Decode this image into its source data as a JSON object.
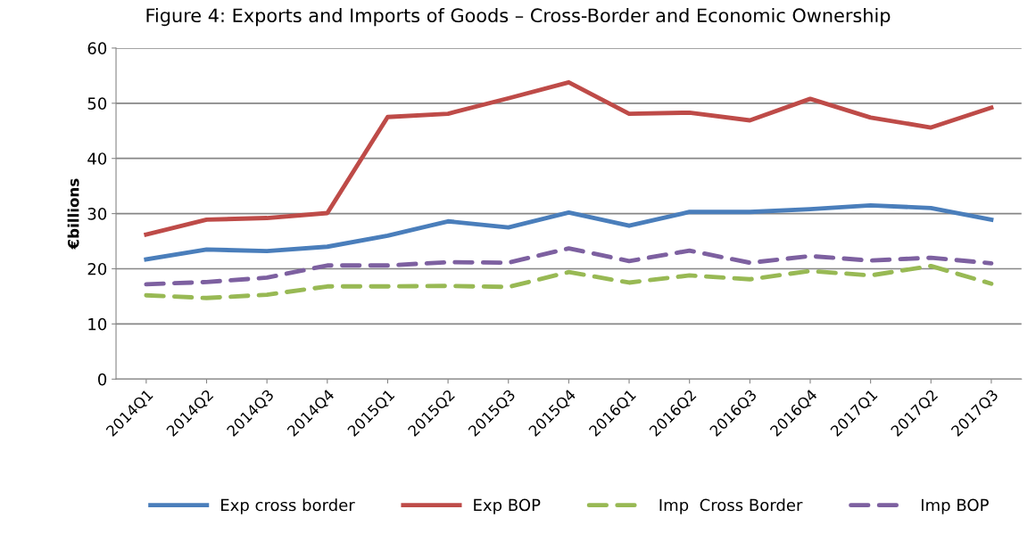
{
  "chart_data": {
    "type": "line",
    "title": "Figure 4: Exports and Imports of Goods – Cross-Border and Economic Ownership",
    "ylabel": "€billions",
    "categories": [
      "2014Q1",
      "2014Q2",
      "2014Q3",
      "2014Q4",
      "2015Q1",
      "2015Q2",
      "2015Q3",
      "2015Q4",
      "2016Q1",
      "2016Q2",
      "2016Q3",
      "2016Q4",
      "2017Q1",
      "2017Q2",
      "2017Q3"
    ],
    "series": [
      {
        "name": "Exp cross border",
        "color": "#4a7ebb",
        "line_style": "solid",
        "values": [
          21.7,
          23.5,
          23.2,
          24.0,
          26.0,
          28.6,
          27.5,
          30.2,
          27.8,
          30.3,
          30.3,
          30.8,
          31.5,
          31.0,
          28.9
        ]
      },
      {
        "name": "Exp BOP",
        "color": "#be4b48",
        "line_style": "solid",
        "values": [
          26.2,
          28.9,
          29.2,
          30.1,
          47.5,
          48.1,
          50.9,
          53.8,
          48.1,
          48.3,
          46.9,
          50.8,
          47.4,
          45.6,
          49.2
        ]
      },
      {
        "name": "Imp  Cross Border",
        "color": "#98b954",
        "line_style": "dashed",
        "values": [
          15.2,
          14.7,
          15.3,
          16.8,
          16.8,
          16.9,
          16.7,
          19.4,
          17.5,
          18.8,
          18.1,
          19.6,
          18.8,
          20.5,
          17.3
        ]
      },
      {
        "name": "Imp BOP",
        "color": "#7d60a0",
        "line_style": "dashed",
        "values": [
          17.2,
          17.6,
          18.4,
          20.6,
          20.6,
          21.2,
          21.1,
          23.7,
          21.4,
          23.3,
          21.1,
          22.3,
          21.5,
          22.0,
          21.0
        ]
      }
    ],
    "ylim": [
      0,
      60
    ],
    "yticks": [
      0,
      10,
      20,
      30,
      40,
      50,
      60
    ],
    "grid": "y",
    "legend": "bottom",
    "marker": "none"
  }
}
